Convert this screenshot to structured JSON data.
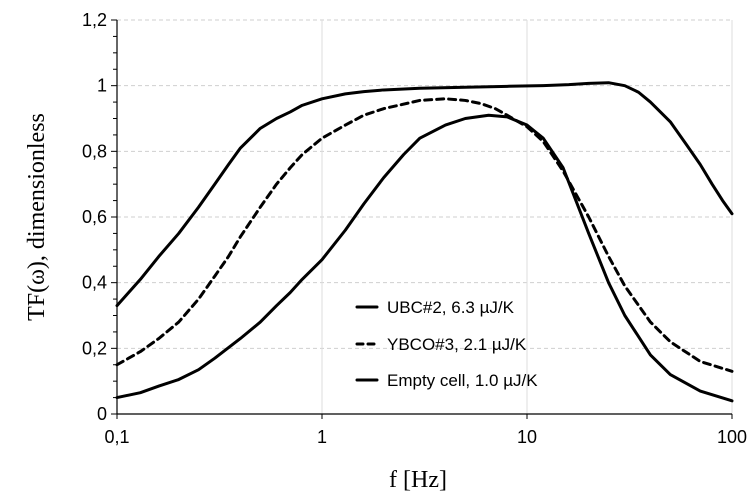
{
  "chart_data": {
    "type": "line",
    "xlabel": "f [Hz]",
    "ylabel": "TF(ω), dimensionless",
    "xscale": "log",
    "xlim": [
      0.1,
      100
    ],
    "ylim": [
      0,
      1.2
    ],
    "x_ticks": [
      0.1,
      1,
      10,
      100
    ],
    "x_tick_labels": [
      "0,1",
      "1",
      "10",
      "100"
    ],
    "y_ticks": [
      0,
      0.2,
      0.4,
      0.6,
      0.8,
      1,
      1.2
    ],
    "y_tick_labels": [
      "0",
      "0,2",
      "0,4",
      "0,6",
      "0,8",
      "1",
      "1,2"
    ],
    "grid": {
      "x_major": "solid light gray",
      "y_major": "dashed light gray"
    },
    "legend_position": "bottom-center",
    "series": [
      {
        "name": "UBC#2, 6.3 µJ/K",
        "line_style": "solid",
        "color": "#000000",
        "points": [
          [
            0.1,
            0.33
          ],
          [
            0.13,
            0.41
          ],
          [
            0.16,
            0.48
          ],
          [
            0.2,
            0.55
          ],
          [
            0.25,
            0.63
          ],
          [
            0.3,
            0.7
          ],
          [
            0.35,
            0.76
          ],
          [
            0.4,
            0.81
          ],
          [
            0.5,
            0.87
          ],
          [
            0.6,
            0.9
          ],
          [
            0.7,
            0.92
          ],
          [
            0.8,
            0.94
          ],
          [
            1.0,
            0.96
          ],
          [
            1.3,
            0.975
          ],
          [
            1.6,
            0.982
          ],
          [
            2.0,
            0.987
          ],
          [
            3.0,
            0.992
          ],
          [
            5.0,
            0.995
          ],
          [
            8.0,
            0.998
          ],
          [
            12.0,
            1.0
          ],
          [
            16.0,
            1.003
          ],
          [
            20.0,
            1.007
          ],
          [
            25.0,
            1.009
          ],
          [
            30.0,
            1.0
          ],
          [
            35.0,
            0.98
          ],
          [
            40.0,
            0.95
          ],
          [
            50.0,
            0.89
          ],
          [
            60.0,
            0.82
          ],
          [
            70.0,
            0.76
          ],
          [
            80.0,
            0.7
          ],
          [
            90.0,
            0.65
          ],
          [
            100.0,
            0.61
          ]
        ]
      },
      {
        "name": "YBCO#3, 2.1 µJ/K",
        "line_style": "dashed",
        "color": "#000000",
        "points": [
          [
            0.1,
            0.15
          ],
          [
            0.13,
            0.19
          ],
          [
            0.16,
            0.23
          ],
          [
            0.2,
            0.28
          ],
          [
            0.25,
            0.35
          ],
          [
            0.3,
            0.42
          ],
          [
            0.35,
            0.48
          ],
          [
            0.4,
            0.54
          ],
          [
            0.5,
            0.63
          ],
          [
            0.6,
            0.7
          ],
          [
            0.7,
            0.75
          ],
          [
            0.8,
            0.79
          ],
          [
            1.0,
            0.84
          ],
          [
            1.3,
            0.88
          ],
          [
            1.6,
            0.91
          ],
          [
            2.0,
            0.93
          ],
          [
            3.0,
            0.955
          ],
          [
            4.0,
            0.96
          ],
          [
            5.0,
            0.955
          ],
          [
            6.0,
            0.945
          ],
          [
            7.0,
            0.93
          ],
          [
            8.0,
            0.91
          ],
          [
            10.0,
            0.875
          ],
          [
            12.0,
            0.83
          ],
          [
            15.0,
            0.74
          ],
          [
            20.0,
            0.6
          ],
          [
            25.0,
            0.48
          ],
          [
            30.0,
            0.39
          ],
          [
            40.0,
            0.28
          ],
          [
            50.0,
            0.22
          ],
          [
            70.0,
            0.16
          ],
          [
            100.0,
            0.13
          ]
        ]
      },
      {
        "name": "Empty cell, 1.0 µJ/K",
        "line_style": "solid",
        "color": "#000000",
        "points": [
          [
            0.1,
            0.05
          ],
          [
            0.13,
            0.065
          ],
          [
            0.16,
            0.085
          ],
          [
            0.2,
            0.105
          ],
          [
            0.25,
            0.135
          ],
          [
            0.3,
            0.17
          ],
          [
            0.4,
            0.23
          ],
          [
            0.5,
            0.28
          ],
          [
            0.6,
            0.33
          ],
          [
            0.7,
            0.37
          ],
          [
            0.8,
            0.41
          ],
          [
            1.0,
            0.47
          ],
          [
            1.3,
            0.56
          ],
          [
            1.6,
            0.64
          ],
          [
            2.0,
            0.72
          ],
          [
            2.5,
            0.79
          ],
          [
            3.0,
            0.84
          ],
          [
            4.0,
            0.88
          ],
          [
            5.0,
            0.9
          ],
          [
            6.5,
            0.91
          ],
          [
            8.0,
            0.905
          ],
          [
            10.0,
            0.88
          ],
          [
            12.0,
            0.84
          ],
          [
            15.0,
            0.75
          ],
          [
            20.0,
            0.55
          ],
          [
            25.0,
            0.4
          ],
          [
            30.0,
            0.3
          ],
          [
            40.0,
            0.18
          ],
          [
            50.0,
            0.12
          ],
          [
            70.0,
            0.07
          ],
          [
            100.0,
            0.04
          ]
        ]
      }
    ]
  }
}
